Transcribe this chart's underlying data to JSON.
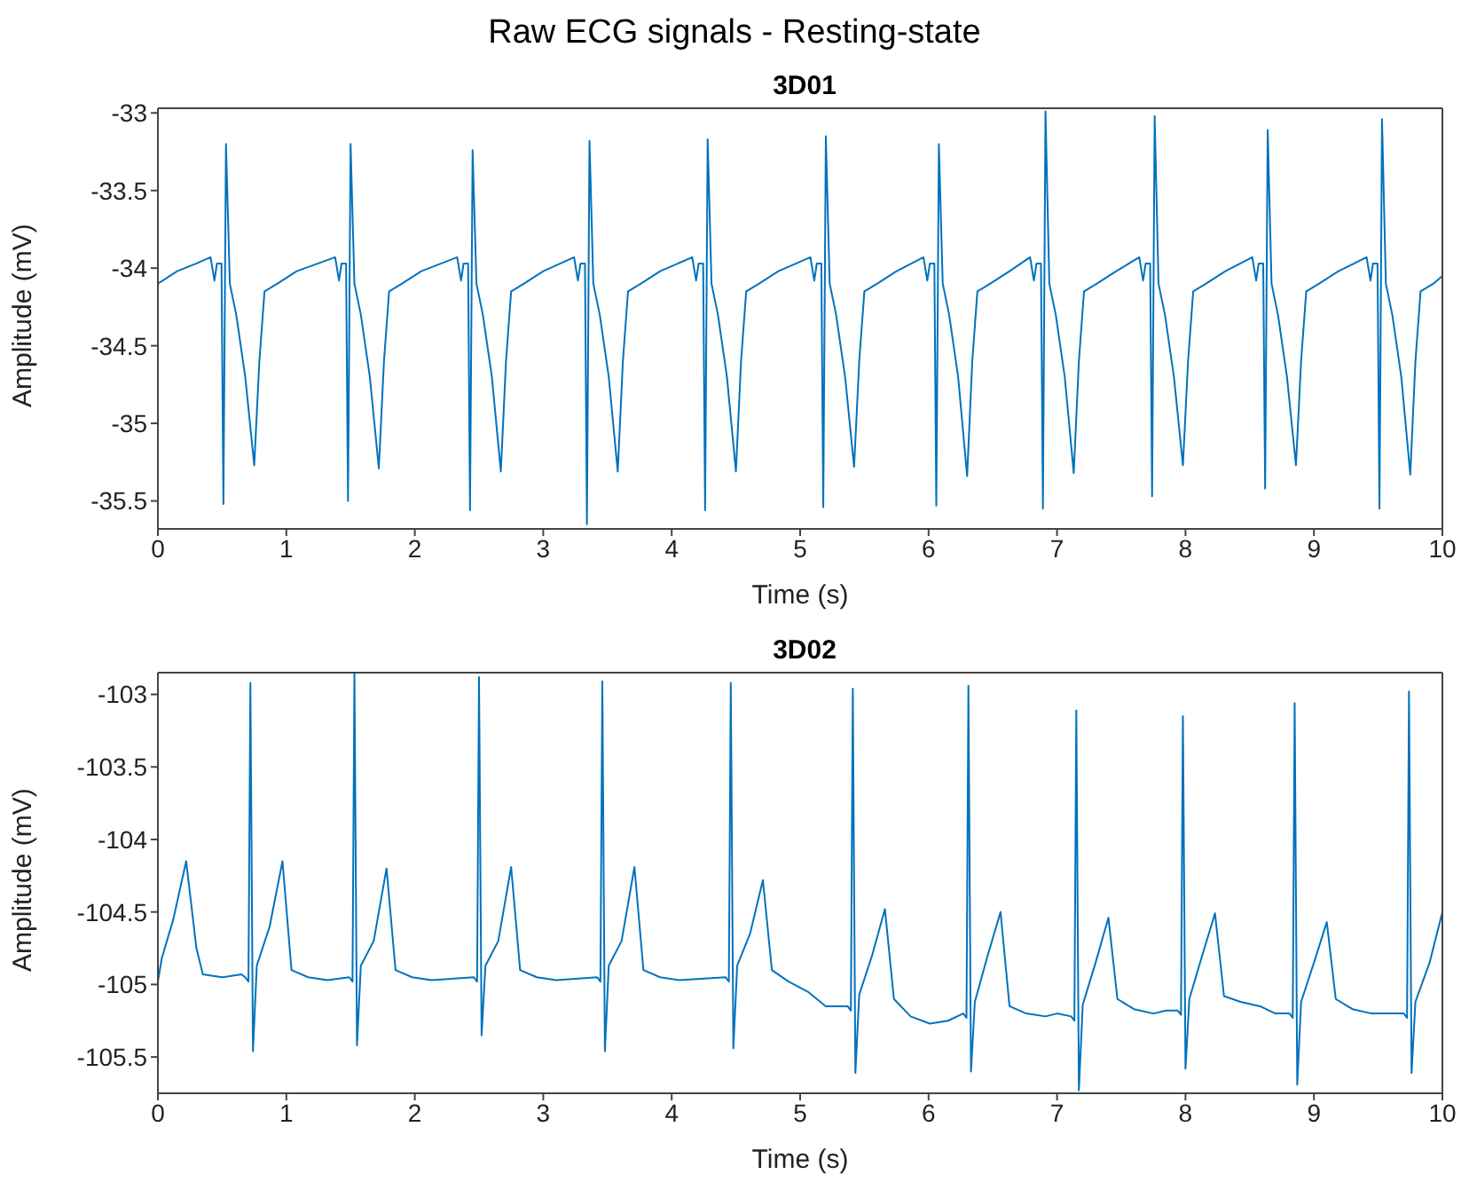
{
  "chart_data": [
    {
      "type": "line",
      "title": "Raw ECG signals - Resting-state",
      "subtitle": "3D01",
      "xlabel": "Time (s)",
      "ylabel": "Amplitude (mV)",
      "color": "#0072bd",
      "xlim": [
        0,
        10
      ],
      "ylim": [
        -35.68,
        -32.97
      ],
      "xticks": [
        0,
        1,
        2,
        3,
        4,
        5,
        6,
        7,
        8,
        9,
        10
      ],
      "yticks": [
        -35.5,
        -35,
        -34.5,
        -34,
        -33.5,
        -33
      ],
      "x": [
        0,
        0.15,
        0.3,
        0.41,
        0.44,
        0.46,
        0.495,
        0.51,
        0.53,
        0.56,
        0.61,
        0.68,
        0.75,
        0.79,
        0.83,
        0.93,
        1.08,
        1.38,
        1.41,
        1.43,
        1.465,
        1.48,
        1.5,
        1.53,
        1.58,
        1.65,
        1.72,
        1.76,
        1.8,
        1.9,
        2.05,
        2.33,
        2.36,
        2.38,
        2.415,
        2.43,
        2.45,
        2.48,
        2.53,
        2.6,
        2.67,
        2.71,
        2.75,
        2.85,
        3.0,
        3.24,
        3.27,
        3.29,
        3.325,
        3.34,
        3.36,
        3.39,
        3.44,
        3.51,
        3.58,
        3.62,
        3.66,
        3.76,
        3.91,
        4.16,
        4.19,
        4.21,
        4.245,
        4.26,
        4.28,
        4.31,
        4.36,
        4.43,
        4.5,
        4.54,
        4.58,
        4.68,
        4.83,
        5.08,
        5.11,
        5.13,
        5.165,
        5.18,
        5.2,
        5.23,
        5.28,
        5.35,
        5.42,
        5.46,
        5.5,
        5.6,
        5.75,
        5.96,
        5.99,
        6.01,
        6.045,
        6.06,
        6.08,
        6.11,
        6.16,
        6.23,
        6.3,
        6.34,
        6.38,
        6.48,
        6.63,
        6.79,
        6.82,
        6.84,
        6.875,
        6.89,
        6.91,
        6.94,
        6.99,
        7.06,
        7.13,
        7.17,
        7.21,
        7.31,
        7.46,
        7.64,
        7.67,
        7.69,
        7.725,
        7.74,
        7.76,
        7.79,
        7.84,
        7.91,
        7.98,
        8.02,
        8.06,
        8.16,
        8.31,
        8.52,
        8.55,
        8.57,
        8.605,
        8.62,
        8.64,
        8.67,
        8.72,
        8.79,
        8.86,
        8.9,
        8.94,
        9.04,
        9.19,
        9.41,
        9.44,
        9.46,
        9.495,
        9.51,
        9.53,
        9.56,
        9.61,
        9.68,
        9.75,
        9.79,
        9.83,
        9.93,
        10.0
      ],
      "values": [
        -34.1,
        -34.02,
        -33.97,
        -33.93,
        -34.08,
        -33.97,
        -33.97,
        -35.52,
        -33.2,
        -34.1,
        -34.3,
        -34.7,
        -35.27,
        -34.6,
        -34.15,
        -34.1,
        -34.02,
        -33.93,
        -34.08,
        -33.97,
        -33.97,
        -35.5,
        -33.2,
        -34.1,
        -34.3,
        -34.7,
        -35.29,
        -34.6,
        -34.15,
        -34.1,
        -34.02,
        -33.93,
        -34.08,
        -33.97,
        -33.97,
        -35.56,
        -33.24,
        -34.1,
        -34.3,
        -34.7,
        -35.31,
        -34.6,
        -34.15,
        -34.1,
        -34.02,
        -33.93,
        -34.08,
        -33.97,
        -33.97,
        -35.65,
        -33.18,
        -34.1,
        -34.3,
        -34.7,
        -35.31,
        -34.6,
        -34.15,
        -34.1,
        -34.02,
        -33.93,
        -34.08,
        -33.97,
        -33.97,
        -35.56,
        -33.17,
        -34.1,
        -34.3,
        -34.7,
        -35.31,
        -34.6,
        -34.15,
        -34.1,
        -34.02,
        -33.93,
        -34.08,
        -33.97,
        -33.97,
        -35.54,
        -33.15,
        -34.1,
        -34.3,
        -34.7,
        -35.28,
        -34.6,
        -34.15,
        -34.1,
        -34.02,
        -33.93,
        -34.08,
        -33.97,
        -33.97,
        -35.53,
        -33.2,
        -34.1,
        -34.3,
        -34.7,
        -35.34,
        -34.6,
        -34.15,
        -34.1,
        -34.02,
        -33.93,
        -34.08,
        -33.97,
        -33.97,
        -35.55,
        -32.99,
        -34.1,
        -34.3,
        -34.7,
        -35.32,
        -34.6,
        -34.15,
        -34.1,
        -34.02,
        -33.93,
        -34.08,
        -33.97,
        -33.97,
        -35.47,
        -33.02,
        -34.1,
        -34.3,
        -34.7,
        -35.27,
        -34.6,
        -34.15,
        -34.1,
        -34.02,
        -33.93,
        -34.08,
        -33.97,
        -33.97,
        -35.42,
        -33.11,
        -34.1,
        -34.3,
        -34.7,
        -35.27,
        -34.6,
        -34.15,
        -34.1,
        -34.02,
        -33.93,
        -34.08,
        -33.97,
        -33.97,
        -35.55,
        -33.04,
        -34.1,
        -34.3,
        -34.7,
        -35.33,
        -34.6,
        -34.15,
        -34.1,
        -34.05
      ]
    },
    {
      "type": "line",
      "title": "3D02",
      "xlabel": "Time (s)",
      "ylabel": "Amplitude (mV)",
      "color": "#0072bd",
      "xlim": [
        0,
        10
      ],
      "ylim": [
        -105.75,
        -102.85
      ],
      "xticks": [
        0,
        1,
        2,
        3,
        4,
        5,
        6,
        7,
        8,
        9,
        10
      ],
      "yticks": [
        -105.5,
        -105,
        -104.5,
        -104,
        -103.5,
        -103
      ],
      "x": [
        0,
        0.03,
        0.12,
        0.22,
        0.3,
        0.35,
        0.5,
        0.65,
        0.68,
        0.705,
        0.72,
        0.74,
        0.77,
        0.87,
        0.97,
        1.04,
        1.17,
        1.32,
        1.49,
        1.515,
        1.53,
        1.55,
        1.58,
        1.68,
        1.78,
        1.85,
        1.98,
        2.13,
        2.46,
        2.485,
        2.5,
        2.52,
        2.55,
        2.65,
        2.75,
        2.82,
        2.95,
        3.1,
        3.42,
        3.445,
        3.46,
        3.48,
        3.51,
        3.61,
        3.71,
        3.78,
        3.91,
        4.06,
        4.42,
        4.445,
        4.46,
        4.48,
        4.51,
        4.61,
        4.71,
        4.78,
        4.91,
        5.06,
        5.2,
        5.37,
        5.395,
        5.41,
        5.43,
        5.46,
        5.56,
        5.66,
        5.73,
        5.86,
        6.01,
        6.15,
        6.27,
        6.295,
        6.31,
        6.33,
        6.36,
        6.46,
        6.56,
        6.63,
        6.76,
        6.91,
        7.0,
        7.11,
        7.135,
        7.15,
        7.17,
        7.2,
        7.3,
        7.4,
        7.47,
        7.6,
        7.75,
        7.85,
        7.94,
        7.965,
        7.98,
        8.0,
        8.03,
        8.13,
        8.23,
        8.3,
        8.43,
        8.58,
        8.7,
        8.81,
        8.835,
        8.85,
        8.87,
        8.9,
        9.0,
        9.1,
        9.17,
        9.3,
        9.45,
        9.6,
        9.7,
        9.725,
        9.74,
        9.76,
        9.79,
        9.9,
        10.0
      ],
      "values": [
        -104.98,
        -104.82,
        -104.55,
        -104.15,
        -104.75,
        -104.93,
        -104.95,
        -104.93,
        -104.95,
        -104.98,
        -102.92,
        -105.46,
        -104.87,
        -104.6,
        -104.15,
        -104.9,
        -104.95,
        -104.97,
        -104.95,
        -104.98,
        -102.85,
        -105.42,
        -104.87,
        -104.7,
        -104.2,
        -104.9,
        -104.95,
        -104.97,
        -104.95,
        -104.98,
        -102.88,
        -105.35,
        -104.87,
        -104.7,
        -104.19,
        -104.9,
        -104.95,
        -104.97,
        -104.95,
        -104.98,
        -102.91,
        -105.46,
        -104.87,
        -104.7,
        -104.19,
        -104.9,
        -104.95,
        -104.97,
        -104.95,
        -104.98,
        -102.92,
        -105.44,
        -104.87,
        -104.65,
        -104.28,
        -104.9,
        -104.98,
        -105.05,
        -105.15,
        -105.15,
        -105.18,
        -102.96,
        -105.61,
        -105.07,
        -104.8,
        -104.48,
        -105.1,
        -105.22,
        -105.27,
        -105.25,
        -105.2,
        -105.23,
        -102.94,
        -105.6,
        -105.12,
        -104.8,
        -104.5,
        -105.15,
        -105.2,
        -105.22,
        -105.2,
        -105.22,
        -105.25,
        -103.11,
        -105.73,
        -105.14,
        -104.85,
        -104.54,
        -105.1,
        -105.17,
        -105.2,
        -105.18,
        -105.18,
        -105.21,
        -103.15,
        -105.58,
        -105.1,
        -104.8,
        -104.51,
        -105.08,
        -105.12,
        -105.15,
        -105.2,
        -105.2,
        -105.23,
        -103.06,
        -105.69,
        -105.12,
        -104.85,
        -104.57,
        -105.1,
        -105.17,
        -105.2,
        -105.2,
        -105.2,
        -105.23,
        -102.98,
        -105.61,
        -105.12,
        -104.85,
        -104.5
      ]
    }
  ]
}
